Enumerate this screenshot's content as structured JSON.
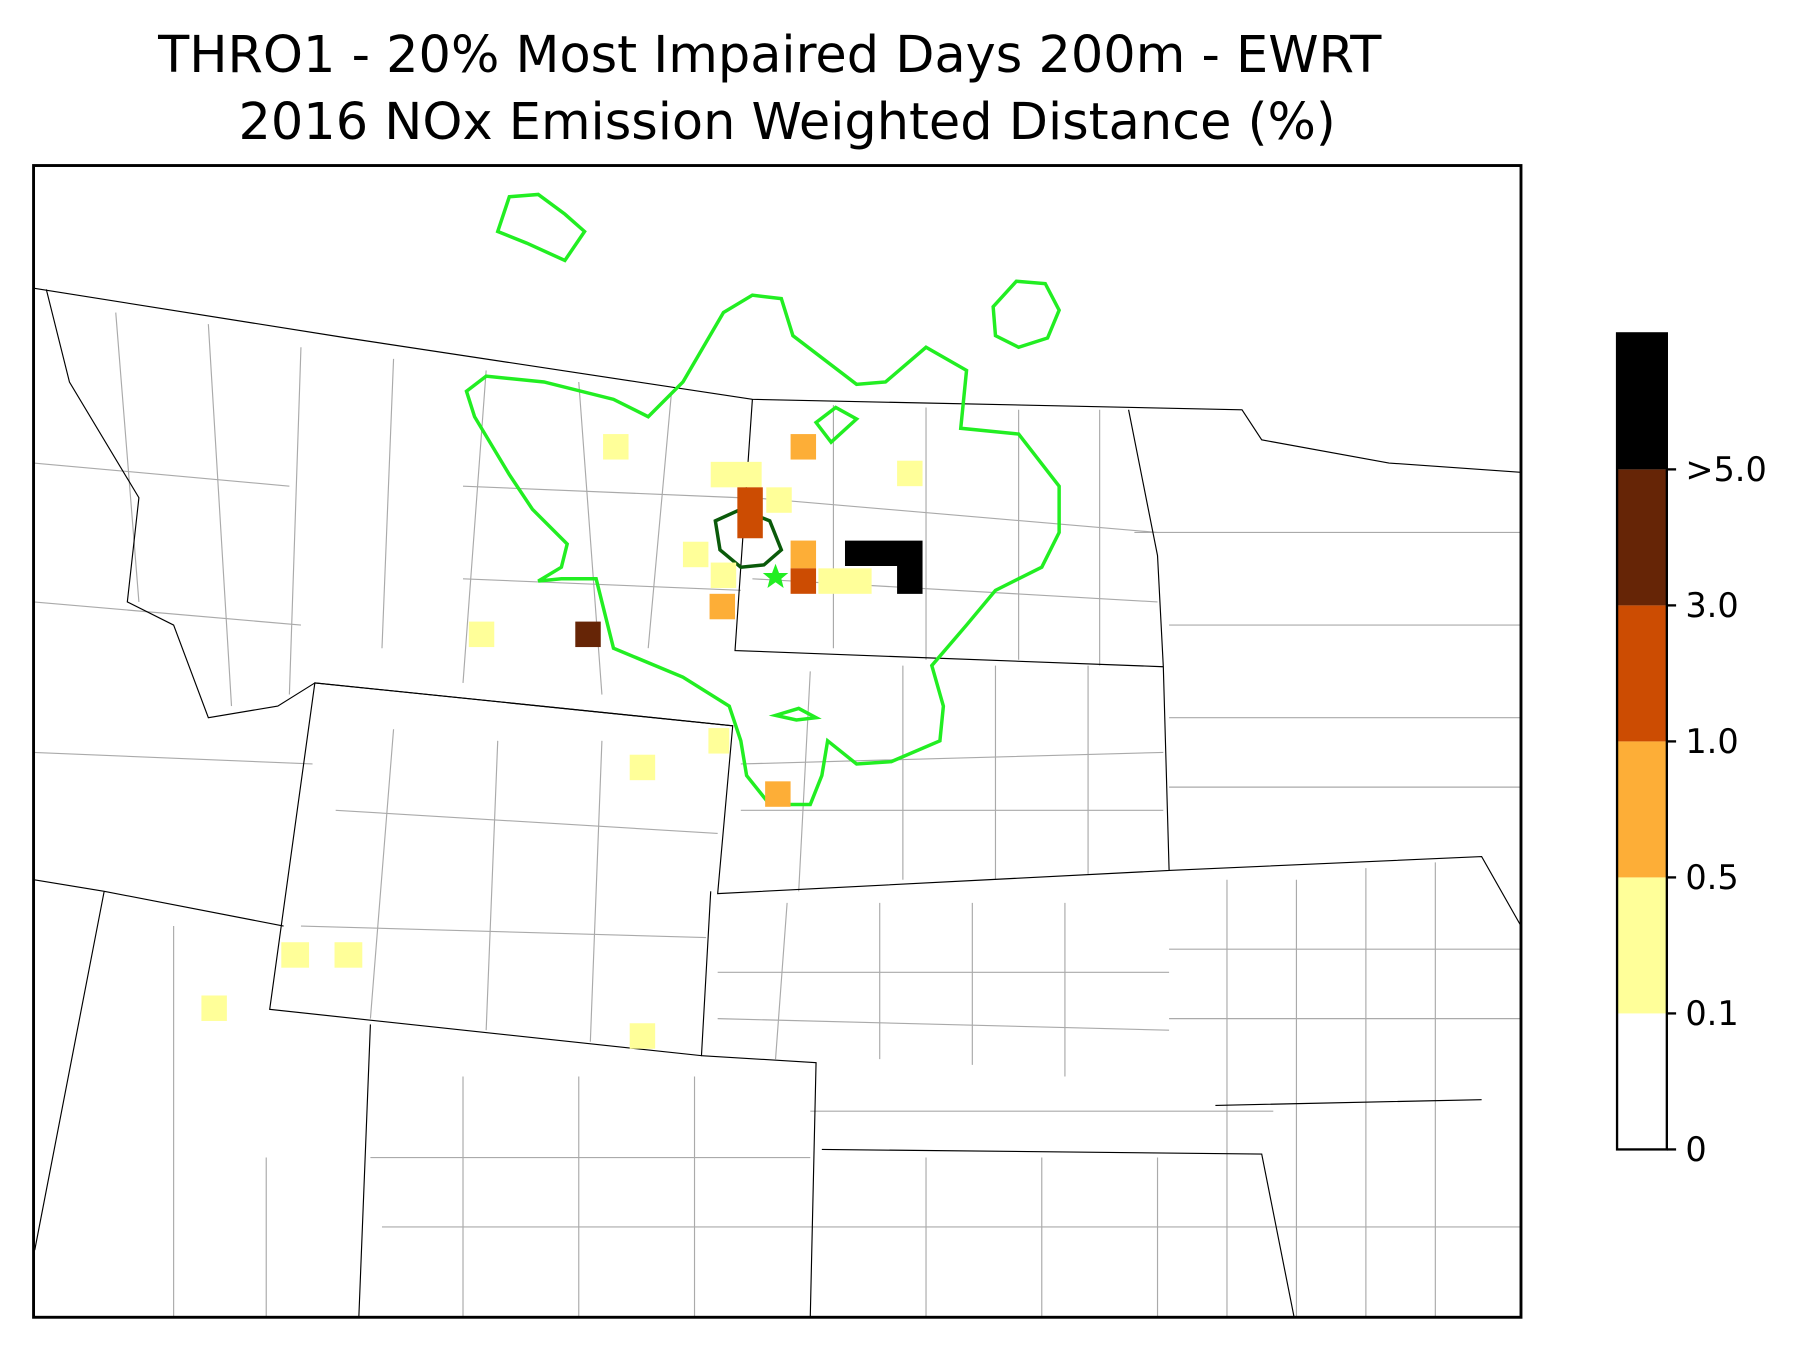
{
  "title": [
    "THRO1 - 20% Most Impaired Days 200m - EWRT",
    "2016 NOx Emission Weighted Distance (%)"
  ],
  "colorbar": {
    "labels": [
      "0",
      "0.1",
      "0.5",
      "1.0",
      "3.0",
      ">5.0"
    ],
    "colors": [
      "#ffffff",
      "#ffff99",
      "#fdae37",
      "#cc4c02",
      "#662506",
      "#000000"
    ]
  }
}
